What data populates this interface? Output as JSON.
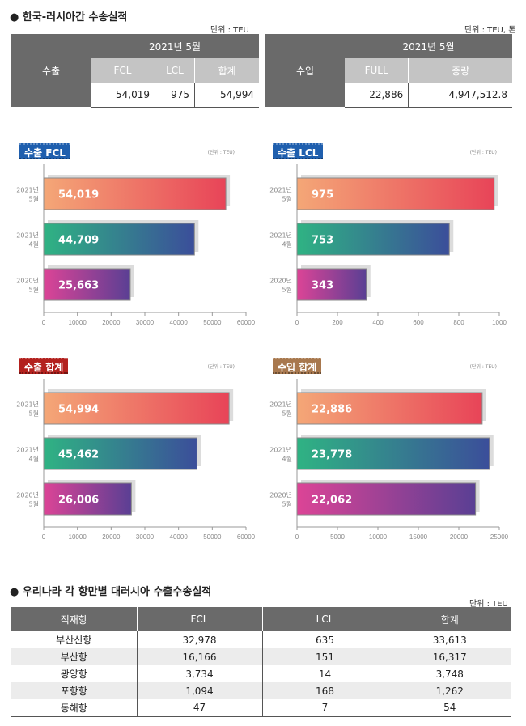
{
  "summary": {
    "title": "● 한국-러시아간 수송실적",
    "export_unit": "단위 : TEU",
    "import_unit": "단위 : TEU, 톤",
    "export_table": {
      "row_label": "수출",
      "period": "2021년 5월",
      "columns": [
        "FCL",
        "LCL",
        "합계"
      ],
      "values": [
        "54,019",
        "975",
        "54,994"
      ]
    },
    "import_table": {
      "row_label": "수입",
      "period": "2021년 5월",
      "columns": [
        "FULL",
        "중량"
      ],
      "values": [
        "22,886",
        "4,947,512.8"
      ]
    }
  },
  "chart_data": [
    {
      "type": "bar",
      "title": "수출 FCL",
      "unit": "(단위 : TEU)",
      "badge_color": "#1f5fae",
      "categories": [
        "2021년\n5월",
        "2021년\n4월",
        "2020년\n5월"
      ],
      "values": [
        54019,
        44709,
        25663
      ],
      "labels": [
        "54,019",
        "44,709",
        "25,663"
      ],
      "xlim": [
        0,
        60000
      ],
      "ticks": [
        0,
        10000,
        20000,
        30000,
        40000,
        50000,
        60000
      ]
    },
    {
      "type": "bar",
      "title": "수출 LCL",
      "unit": "(단위 : TEU)",
      "badge_color": "#1f5fae",
      "categories": [
        "2021년\n5월",
        "2021년\n4월",
        "2020년\n5월"
      ],
      "values": [
        975,
        753,
        343
      ],
      "labels": [
        "975",
        "753",
        "343"
      ],
      "xlim": [
        0,
        1000
      ],
      "ticks": [
        0,
        200,
        400,
        600,
        800,
        1000
      ]
    },
    {
      "type": "bar",
      "title": "수출 합계",
      "unit": "(단위 : TEU)",
      "badge_color": "#b3211e",
      "categories": [
        "2021년\n5월",
        "2021년\n4월",
        "2020년\n5월"
      ],
      "values": [
        54994,
        45462,
        26006
      ],
      "labels": [
        "54,994",
        "45,462",
        "26,006"
      ],
      "xlim": [
        0,
        60000
      ],
      "ticks": [
        0,
        10000,
        20000,
        30000,
        40000,
        50000,
        60000
      ]
    },
    {
      "type": "bar",
      "title": "수입 합계",
      "unit": "(단위 : TEU)",
      "badge_color": "#a8784e",
      "categories": [
        "2021년\n5월",
        "2021년\n4월",
        "2020년\n5월"
      ],
      "values": [
        22886,
        23778,
        22062
      ],
      "labels": [
        "22,886",
        "23,778",
        "22,062"
      ],
      "xlim": [
        0,
        25000
      ],
      "ticks": [
        0,
        5000,
        10000,
        15000,
        20000,
        25000
      ]
    }
  ],
  "bar_gradients": [
    [
      "#f4a777",
      "#e84458"
    ],
    [
      "#2fb383",
      "#3b4e9a"
    ],
    [
      "#dc4496",
      "#5a3f94"
    ]
  ],
  "ports": {
    "title": "● 우리나라 각 항만별 대러시아 수출수송실적",
    "unit": "단위 : TEU",
    "headers": [
      "적재항",
      "FCL",
      "LCL",
      "합계"
    ],
    "rows": [
      [
        "부산신항",
        "32,978",
        "635",
        "33,613"
      ],
      [
        "부산항",
        "16,166",
        "151",
        "16,317"
      ],
      [
        "광양항",
        "3,734",
        "14",
        "3,748"
      ],
      [
        "포항항",
        "1,094",
        "168",
        "1,262"
      ],
      [
        "동해항",
        "47",
        "7",
        "54"
      ]
    ]
  }
}
